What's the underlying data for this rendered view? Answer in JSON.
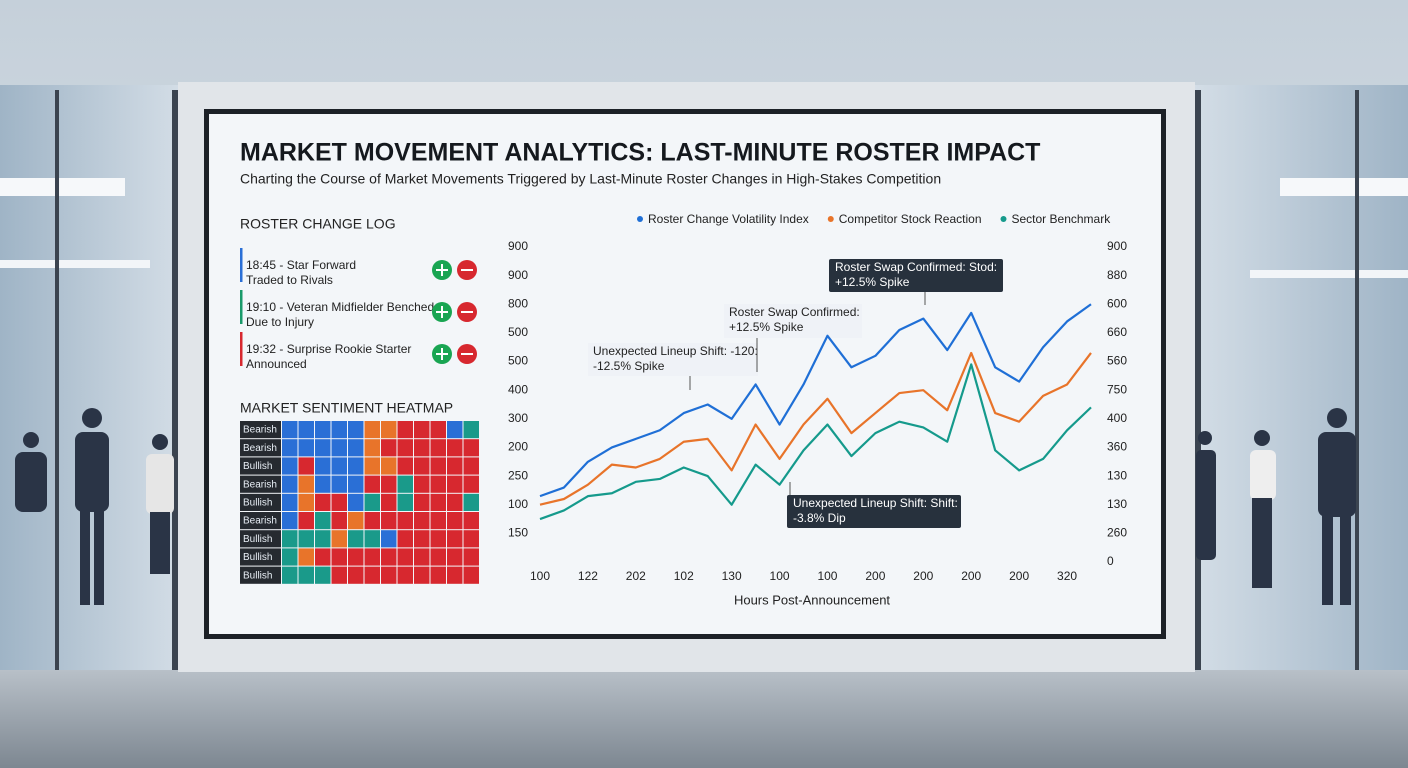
{
  "title": "MARKET MOVEMENT ANALYTICS: LAST-MINUTE ROSTER IMPACT",
  "subtitle": "Charting the Course of Market Movements Triggered by Last-Minute Roster Changes in High-Stakes Competition",
  "roster_log": {
    "title": "ROSTER CHANGE LOG",
    "entries": [
      {
        "text": [
          "18:45 - Star Forward",
          "Traded to Rivals"
        ],
        "color": "#2a6fd6"
      },
      {
        "text": [
          "19:10 - Veteran Midfielder Benched",
          "Due to Injury"
        ],
        "color": "#1a9a6a"
      },
      {
        "text": [
          "19:32 - Surprise Rookie Starter",
          "Announced"
        ],
        "color": "#d7282f"
      }
    ]
  },
  "heatmap": {
    "title": "MARKET SENTIMENT HEATMAP",
    "rows": [
      {
        "label": "Bearish",
        "cells": [
          "#2a6fd6",
          "#2a6fd6",
          "#2a6fd6",
          "#2a6fd6",
          "#2a6fd6",
          "#e8742a",
          "#e8742a",
          "#d7282f",
          "#d7282f",
          "#d7282f",
          "#2a6fd6",
          "#1a9a8a"
        ]
      },
      {
        "label": "Bearish",
        "cells": [
          "#2a6fd6",
          "#2a6fd6",
          "#2a6fd6",
          "#2a6fd6",
          "#2a6fd6",
          "#e8742a",
          "#d7282f",
          "#d7282f",
          "#d7282f",
          "#d7282f",
          "#d7282f",
          "#d7282f"
        ]
      },
      {
        "label": "Bullish",
        "cells": [
          "#2a6fd6",
          "#d7282f",
          "#2a6fd6",
          "#2a6fd6",
          "#2a6fd6",
          "#e8742a",
          "#e8742a",
          "#d7282f",
          "#d7282f",
          "#d7282f",
          "#d7282f",
          "#d7282f"
        ]
      },
      {
        "label": "Bearish",
        "cells": [
          "#2a6fd6",
          "#e8742a",
          "#2a6fd6",
          "#2a6fd6",
          "#2a6fd6",
          "#d7282f",
          "#d7282f",
          "#1a9a8a",
          "#d7282f",
          "#d7282f",
          "#d7282f",
          "#d7282f"
        ]
      },
      {
        "label": "Bullish",
        "cells": [
          "#2a6fd6",
          "#e8742a",
          "#d7282f",
          "#d7282f",
          "#2a6fd6",
          "#1a9a8a",
          "#d7282f",
          "#1a9a8a",
          "#d7282f",
          "#d7282f",
          "#d7282f",
          "#1a9a8a"
        ]
      },
      {
        "label": "Bearish",
        "cells": [
          "#2a6fd6",
          "#d7282f",
          "#1a9a8a",
          "#d7282f",
          "#e8742a",
          "#d7282f",
          "#d7282f",
          "#d7282f",
          "#d7282f",
          "#d7282f",
          "#d7282f",
          "#d7282f"
        ]
      },
      {
        "label": "Bullish",
        "cells": [
          "#1a9a8a",
          "#1a9a8a",
          "#1a9a8a",
          "#e8742a",
          "#1a9a8a",
          "#1a9a8a",
          "#2a6fd6",
          "#d7282f",
          "#d7282f",
          "#d7282f",
          "#d7282f",
          "#d7282f"
        ]
      },
      {
        "label": "Bullish",
        "cells": [
          "#1a9a8a",
          "#e8742a",
          "#d7282f",
          "#d7282f",
          "#d7282f",
          "#d7282f",
          "#d7282f",
          "#d7282f",
          "#d7282f",
          "#d7282f",
          "#d7282f",
          "#d7282f"
        ]
      },
      {
        "label": "Bullish",
        "cells": [
          "#1a9a8a",
          "#1a9a8a",
          "#1a9a8a",
          "#d7282f",
          "#d7282f",
          "#d7282f",
          "#d7282f",
          "#d7282f",
          "#d7282f",
          "#d7282f",
          "#d7282f",
          "#d7282f"
        ]
      }
    ]
  },
  "chart_data": {
    "type": "line",
    "x_label": "Hours Post-Announcement",
    "legend": "top",
    "x": [
      0,
      0.5,
      1,
      1.5,
      2,
      2.5,
      3,
      3.5,
      4,
      4.5,
      5,
      5.5,
      6,
      6.5,
      7,
      7.5,
      8,
      8.5,
      9,
      9.5,
      10,
      10.5,
      11,
      11.5
    ],
    "xlim": [
      0,
      11.5
    ],
    "xticks": [
      {
        "value": 0,
        "label": "100"
      },
      {
        "value": 1,
        "label": "122"
      },
      {
        "value": 2,
        "label": "202"
      },
      {
        "value": 3,
        "label": "102"
      },
      {
        "value": 4,
        "label": "130"
      },
      {
        "value": 5,
        "label": "100"
      },
      {
        "value": 6,
        "label": "100"
      },
      {
        "value": 7,
        "label": "200"
      },
      {
        "value": 8,
        "label": "200"
      },
      {
        "value": 9,
        "label": "200"
      },
      {
        "value": 10,
        "label": "200"
      },
      {
        "value": 11,
        "label": "320"
      }
    ],
    "ylim": [
      0,
      11
    ],
    "yticks": [
      {
        "value": 1,
        "label": "150"
      },
      {
        "value": 2,
        "label": "100"
      },
      {
        "value": 3,
        "label": "250"
      },
      {
        "value": 4,
        "label": "200"
      },
      {
        "value": 5,
        "label": "300"
      },
      {
        "value": 6,
        "label": "400"
      },
      {
        "value": 7,
        "label": "500"
      },
      {
        "value": 8,
        "label": "500"
      },
      {
        "value": 9,
        "label": "800"
      },
      {
        "value": 10,
        "label": "900"
      },
      {
        "value": 11,
        "label": "900"
      }
    ],
    "y2lim": [
      0,
      11
    ],
    "y2ticks": [
      0,
      {
        "value": 1,
        "label": "260"
      },
      {
        "value": 2,
        "label": "130"
      },
      {
        "value": 3,
        "label": "130"
      },
      {
        "value": 4,
        "label": "360"
      },
      {
        "value": 5,
        "label": "400"
      },
      {
        "value": 6,
        "label": "750"
      },
      {
        "value": 7,
        "label": "560"
      },
      {
        "value": 8,
        "label": "660"
      },
      {
        "value": 9,
        "label": "600"
      },
      {
        "value": 10,
        "label": "880"
      },
      {
        "value": 11,
        "label": "900"
      }
    ],
    "series": [
      {
        "name": "Roster Change Volatility Index",
        "color": "#1f6fd6",
        "values": [
          2.3,
          2.6,
          3.5,
          4.0,
          4.3,
          4.6,
          5.2,
          5.5,
          5.0,
          6.2,
          4.8,
          6.2,
          7.9,
          6.8,
          7.2,
          8.1,
          8.5,
          7.4,
          8.7,
          6.8,
          6.3,
          7.5,
          8.4,
          9.0
        ]
      },
      {
        "name": "Competitor Stock Reaction",
        "color": "#e8742a",
        "values": [
          2.0,
          2.2,
          2.7,
          3.4,
          3.3,
          3.6,
          4.2,
          4.3,
          3.2,
          4.8,
          3.6,
          4.8,
          5.7,
          4.5,
          5.2,
          5.9,
          6.0,
          5.3,
          7.3,
          5.2,
          4.9,
          5.8,
          6.2,
          7.3
        ]
      },
      {
        "name": "Sector Benchmark",
        "color": "#159a8c",
        "values": [
          1.5,
          1.8,
          2.3,
          2.4,
          2.8,
          2.9,
          3.3,
          3.0,
          2.0,
          3.4,
          2.7,
          3.9,
          4.8,
          3.7,
          4.5,
          4.9,
          4.7,
          4.2,
          6.9,
          3.9,
          3.2,
          3.6,
          4.6,
          5.4
        ]
      }
    ],
    "annotations": [
      {
        "text": [
          "Unexpected Lineup Shift: -120:",
          "-12.5% Spike"
        ]
      },
      {
        "text": [
          "Roster Swap Confirmed:",
          "+12.5% Spike"
        ]
      },
      {
        "text": [
          "Roster Swap Confirmed: Stod:",
          "+12.5% Spike"
        ]
      },
      {
        "text": [
          "Unexpected Lineup Shift: Shift:",
          "-3.8% Dip"
        ]
      }
    ]
  }
}
